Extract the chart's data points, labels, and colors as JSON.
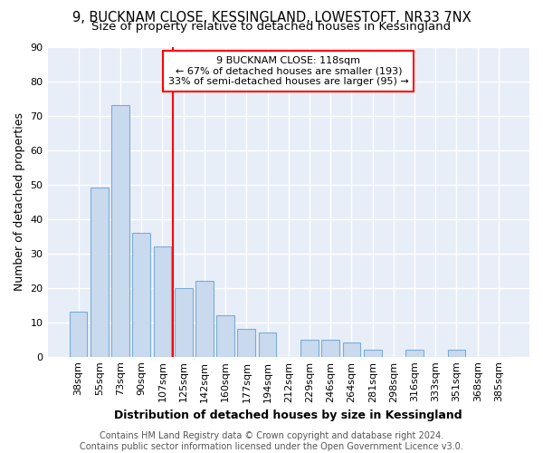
{
  "title1": "9, BUCKNAM CLOSE, KESSINGLAND, LOWESTOFT, NR33 7NX",
  "title2": "Size of property relative to detached houses in Kessingland",
  "xlabel": "Distribution of detached houses by size in Kessingland",
  "ylabel": "Number of detached properties",
  "categories": [
    "38sqm",
    "55sqm",
    "73sqm",
    "90sqm",
    "107sqm",
    "125sqm",
    "142sqm",
    "160sqm",
    "177sqm",
    "194sqm",
    "212sqm",
    "229sqm",
    "246sqm",
    "264sqm",
    "281sqm",
    "298sqm",
    "316sqm",
    "333sqm",
    "351sqm",
    "368sqm",
    "385sqm"
  ],
  "values": [
    13,
    49,
    73,
    36,
    32,
    20,
    22,
    12,
    8,
    7,
    0,
    5,
    5,
    4,
    2,
    0,
    2,
    0,
    2,
    0,
    0
  ],
  "bar_color": "#c9d9ee",
  "bar_edge_color": "#7aadd4",
  "bar_width": 0.85,
  "vline_color": "red",
  "annotation_text": "9 BUCKNAM CLOSE: 118sqm\n← 67% of detached houses are smaller (193)\n33% of semi-detached houses are larger (95) →",
  "ylim": [
    0,
    90
  ],
  "yticks": [
    0,
    10,
    20,
    30,
    40,
    50,
    60,
    70,
    80,
    90
  ],
  "footer": "Contains HM Land Registry data © Crown copyright and database right 2024.\nContains public sector information licensed under the Open Government Licence v3.0.",
  "bg_color": "#ffffff",
  "plot_bg_color": "#e8eef8",
  "grid_color": "#ffffff",
  "title_fontsize": 10.5,
  "subtitle_fontsize": 9.5,
  "axis_label_fontsize": 9,
  "tick_fontsize": 8,
  "footer_fontsize": 7,
  "annotation_fontsize": 8
}
